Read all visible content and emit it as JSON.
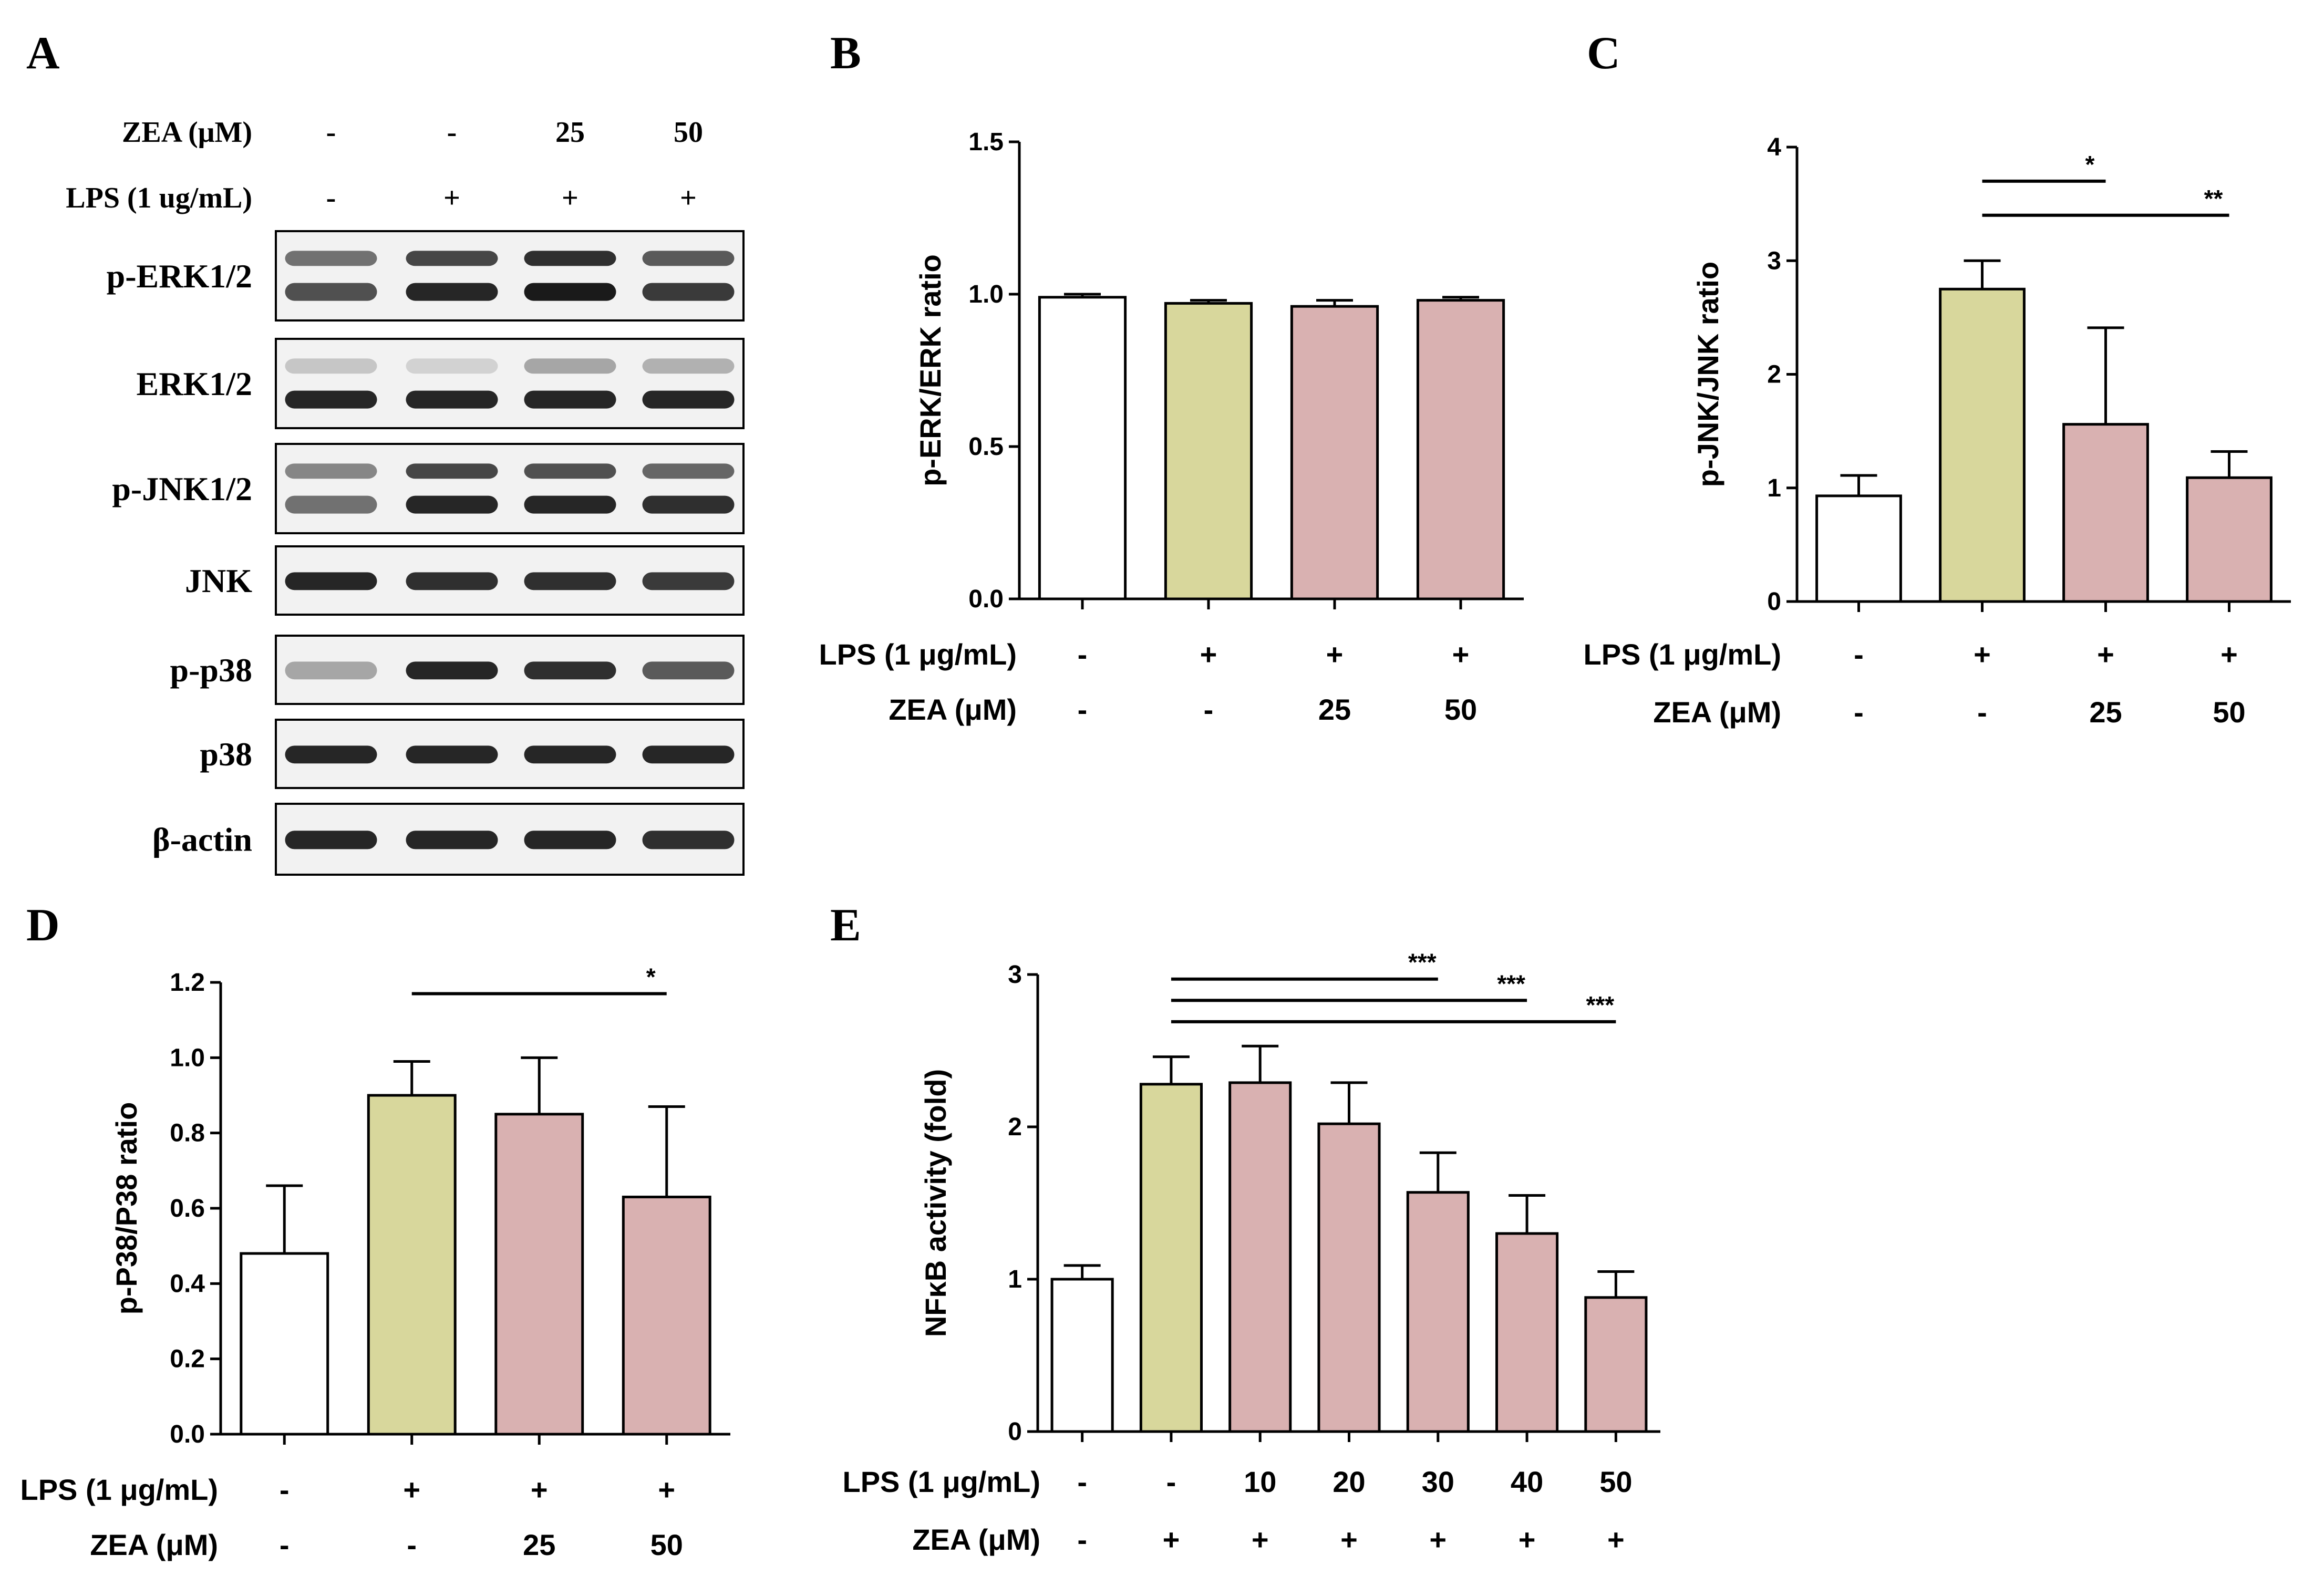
{
  "colors": {
    "control": "#ffffff",
    "lps": "#d8d79c",
    "zea": "#d9b1b1",
    "stroke": "#000000",
    "band": "#1a1a1a",
    "blot_bg": "#f2f2f2"
  },
  "panels": {
    "A": "A",
    "B": "B",
    "C": "C",
    "D": "D",
    "E": "E"
  },
  "western_blot": {
    "treatment_rows": [
      {
        "label": "ZEA (μM)",
        "values": [
          "-",
          "-",
          "25",
          "50"
        ]
      },
      {
        "label": "LPS (1 ug/mL)",
        "values": [
          "-",
          "+",
          "+",
          "+"
        ]
      }
    ],
    "blots": [
      {
        "label": "p-ERK1/2",
        "double": true,
        "intensity": [
          0.75,
          0.95,
          1.0,
          0.85
        ],
        "upper_intensity": [
          0.6,
          0.8,
          0.9,
          0.7
        ]
      },
      {
        "label": "ERK1/2",
        "double": true,
        "intensity": [
          0.95,
          0.95,
          0.95,
          0.95
        ],
        "upper_intensity": [
          0.2,
          0.15,
          0.35,
          0.3
        ]
      },
      {
        "label": "p-JNK1/2",
        "double": true,
        "intensity": [
          0.6,
          0.95,
          0.95,
          0.9
        ],
        "upper_intensity": [
          0.5,
          0.8,
          0.75,
          0.65
        ]
      },
      {
        "label": "JNK",
        "double": false,
        "intensity": [
          0.95,
          0.9,
          0.9,
          0.85
        ]
      },
      {
        "label": "p-p38",
        "double": false,
        "intensity": [
          0.35,
          0.95,
          0.9,
          0.7
        ]
      },
      {
        "label": "p38",
        "double": false,
        "intensity": [
          0.95,
          0.95,
          0.95,
          0.95
        ]
      },
      {
        "label": "β-actin",
        "double": false,
        "intensity": [
          0.95,
          0.95,
          0.95,
          0.9
        ]
      }
    ]
  },
  "chart_data": [
    {
      "panel": "B",
      "type": "bar",
      "ylabel": "p-ERK/ERK ratio",
      "ylim": [
        0,
        1.5
      ],
      "yticks": [
        "0.0",
        "0.5",
        "1.0",
        "1.5"
      ],
      "ytick_values": [
        0,
        0.5,
        1.0,
        1.5
      ],
      "values": [
        0.99,
        0.97,
        0.96,
        0.98
      ],
      "errors": [
        0.01,
        0.01,
        0.02,
        0.01
      ],
      "bar_colors": [
        "control",
        "lps",
        "zea",
        "zea"
      ],
      "treatment_rows": [
        {
          "label": "LPS (1 μg/mL)",
          "values": [
            "-",
            "+",
            "+",
            "+"
          ]
        },
        {
          "label": "ZEA (μM)",
          "values": [
            "-",
            "-",
            "25",
            "50"
          ]
        }
      ],
      "significance": []
    },
    {
      "panel": "C",
      "type": "bar",
      "ylabel": "p-JNK/JNK ratio",
      "ylim": [
        0,
        4
      ],
      "yticks": [
        "0",
        "1",
        "2",
        "3",
        "4"
      ],
      "ytick_values": [
        0,
        1,
        2,
        3,
        4
      ],
      "values": [
        0.93,
        2.75,
        1.56,
        1.09
      ],
      "errors": [
        0.18,
        0.25,
        0.85,
        0.23
      ],
      "bar_colors": [
        "control",
        "lps",
        "zea",
        "zea"
      ],
      "treatment_rows": [
        {
          "label": "LPS (1 μg/mL)",
          "values": [
            "-",
            "+",
            "+",
            "+"
          ]
        },
        {
          "label": "ZEA (μM)",
          "values": [
            "-",
            "-",
            "25",
            "50"
          ]
        }
      ],
      "significance": [
        {
          "from": 1,
          "to": 2,
          "label": "*",
          "level": 3.7
        },
        {
          "from": 1,
          "to": 3,
          "label": "**",
          "level": 3.4
        }
      ]
    },
    {
      "panel": "D",
      "type": "bar",
      "ylabel": "p-P38/P38 ratio",
      "ylim": [
        0,
        1.2
      ],
      "yticks": [
        "0.0",
        "0.2",
        "0.4",
        "0.6",
        "0.8",
        "1.0",
        "1.2"
      ],
      "ytick_values": [
        0,
        0.2,
        0.4,
        0.6,
        0.8,
        1.0,
        1.2
      ],
      "values": [
        0.48,
        0.9,
        0.85,
        0.63
      ],
      "errors": [
        0.18,
        0.09,
        0.15,
        0.24
      ],
      "bar_colors": [
        "control",
        "lps",
        "zea",
        "zea"
      ],
      "treatment_rows": [
        {
          "label": "LPS (1 μg/mL)",
          "values": [
            "-",
            "+",
            "+",
            "+"
          ]
        },
        {
          "label": "ZEA (μM)",
          "values": [
            "-",
            "-",
            "25",
            "50"
          ]
        }
      ],
      "significance": [
        {
          "from": 1,
          "to": 3,
          "label": "*",
          "level": 1.17
        }
      ]
    },
    {
      "panel": "E",
      "type": "bar",
      "ylabel": "NFκB activity (fold)",
      "ylim": [
        0,
        3
      ],
      "yticks": [
        "0",
        "1",
        "2",
        "3"
      ],
      "ytick_values": [
        0,
        1,
        2,
        3
      ],
      "values": [
        1.0,
        2.28,
        2.29,
        2.02,
        1.57,
        1.3,
        0.88
      ],
      "errors": [
        0.09,
        0.18,
        0.24,
        0.27,
        0.26,
        0.25,
        0.17
      ],
      "bar_colors": [
        "control",
        "lps",
        "zea",
        "zea",
        "zea",
        "zea",
        "zea"
      ],
      "treatment_rows": [
        {
          "label": "LPS (1 μg/mL)",
          "values": [
            "-",
            "-",
            "10",
            "20",
            "30",
            "40",
            "50"
          ]
        },
        {
          "label": "ZEA (μM)",
          "values": [
            "-",
            "+",
            "+",
            "+",
            "+",
            "+",
            "+"
          ]
        }
      ],
      "significance": [
        {
          "from": 1,
          "to": 4,
          "label": "***",
          "level": 2.97
        },
        {
          "from": 1,
          "to": 5,
          "label": "***",
          "level": 2.83
        },
        {
          "from": 1,
          "to": 6,
          "label": "***",
          "level": 2.69
        }
      ]
    }
  ]
}
